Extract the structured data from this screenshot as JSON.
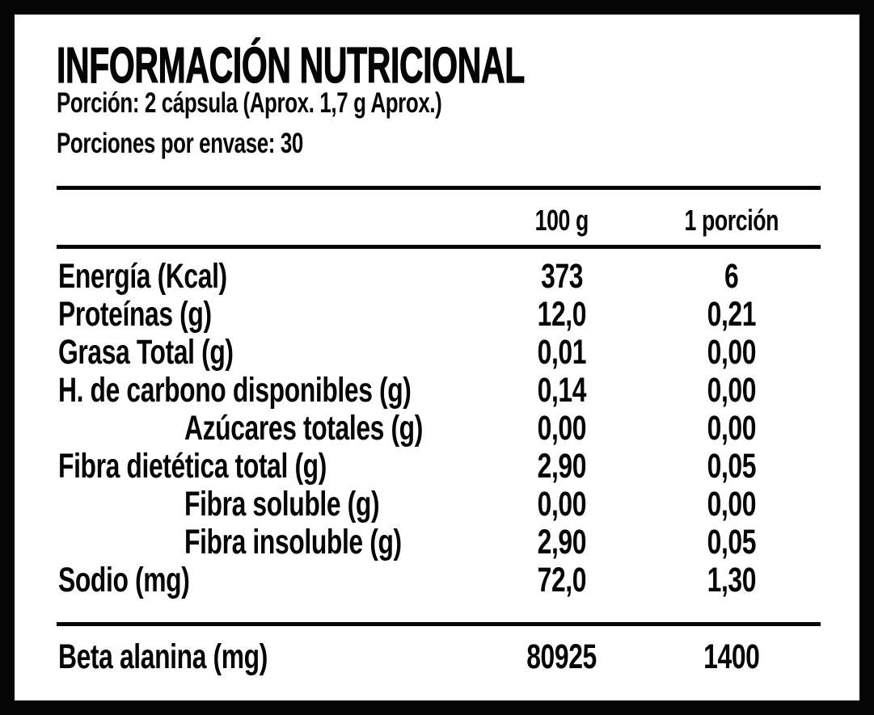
{
  "label": {
    "title": "INFORMACIÓN NUTRICIONAL",
    "serving_line": "Porción: 2 cápsula (Aprox. 1,7 g Aprox.)",
    "servings_per_pack_line": "Porciones por envase: 30",
    "columns": {
      "per_100g": "100 g",
      "per_serving": "1 porción"
    },
    "rows": [
      {
        "name": "Energía (Kcal)",
        "per_100g": "373",
        "per_serving": "6",
        "indent": false
      },
      {
        "name": "Proteínas (g)",
        "per_100g": "12,0",
        "per_serving": "0,21",
        "indent": false
      },
      {
        "name": "Grasa Total (g)",
        "per_100g": "0,01",
        "per_serving": "0,00",
        "indent": false
      },
      {
        "name": "H. de carbono disponibles (g)",
        "per_100g": "0,14",
        "per_serving": "0,00",
        "indent": false
      },
      {
        "name": "Azúcares totales (g)",
        "per_100g": "0,00",
        "per_serving": "0,00",
        "indent": true
      },
      {
        "name": "Fibra dietética total (g)",
        "per_100g": "2,90",
        "per_serving": "0,05",
        "indent": false
      },
      {
        "name": "Fibra soluble (g)",
        "per_100g": "0,00",
        "per_serving": "0,00",
        "indent": true
      },
      {
        "name": "Fibra insoluble (g)",
        "per_100g": "2,90",
        "per_serving": "0,05",
        "indent": true
      },
      {
        "name": "Sodio (mg)",
        "per_100g": "72,0",
        "per_serving": "1,30",
        "indent": false
      }
    ],
    "footer_row": {
      "name": "Beta alanina (mg)",
      "per_100g": "80925",
      "per_serving": "1400"
    },
    "colors": {
      "text": "#050505",
      "background": "#ffffff",
      "border": "#050505"
    }
  }
}
